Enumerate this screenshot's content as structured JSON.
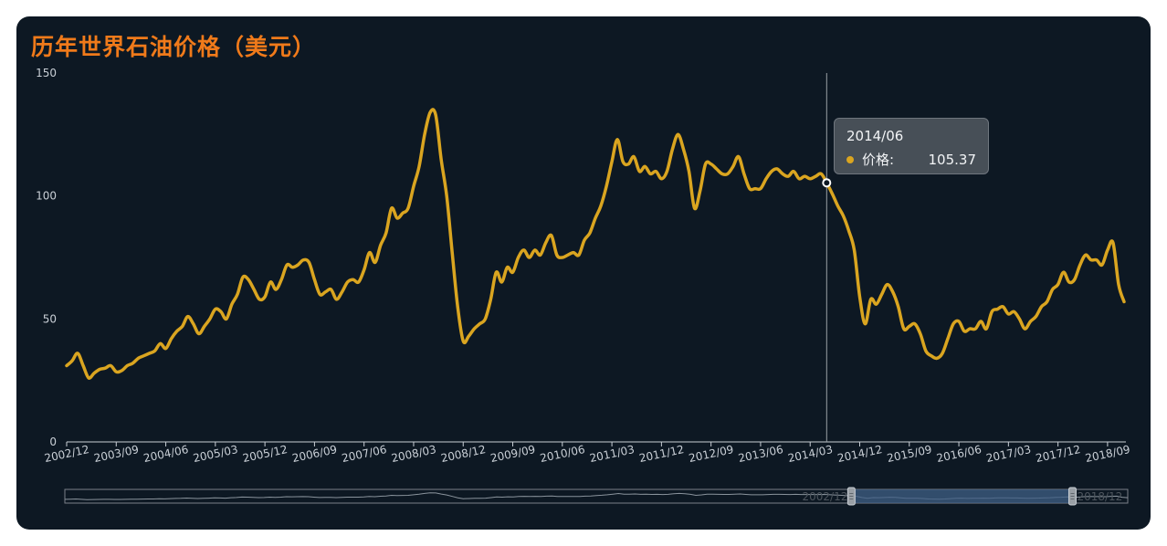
{
  "title": "历年世界石油价格（美元）",
  "colors": {
    "background": "#0d1823",
    "title": "#f07a1a",
    "line": "#daa520",
    "axis": "#c9cfd6",
    "cursor": "#9aa0a6",
    "zoom_border": "#7a8088",
    "zoom_fill": "#3f5f86"
  },
  "tooltip": {
    "date": "2014/06",
    "series_label": "价格:",
    "value": "105.37"
  },
  "zoom": {
    "start_label": "2002/12",
    "end_label": "2018/12",
    "start_fraction": 0.74,
    "end_fraction": 0.948
  },
  "chart_data": {
    "type": "line",
    "title": "历年世界石油价格（美元）",
    "xlabel": "",
    "ylabel": "",
    "ylim": [
      0,
      150
    ],
    "yticks": [
      0,
      50,
      100,
      150
    ],
    "x_tick_labels": [
      "2002/12",
      "2003/09",
      "2004/06",
      "2005/03",
      "2005/12",
      "2006/09",
      "2007/06",
      "2008/03",
      "2008/12",
      "2009/09",
      "2010/06",
      "2011/03",
      "2011/12",
      "2012/09",
      "2013/06",
      "2014/03",
      "2014/12",
      "2015/09",
      "2016/06",
      "2017/03",
      "2017/12",
      "2018/09"
    ],
    "grid": false,
    "legend": "none",
    "highlight": {
      "x": "2014/06",
      "y": 105.37
    },
    "series": [
      {
        "points": [
          [
            "2002/12",
            31
          ],
          [
            "2003/01",
            33
          ],
          [
            "2003/02",
            36
          ],
          [
            "2003/03",
            31
          ],
          [
            "2003/04",
            26
          ],
          [
            "2003/05",
            28
          ],
          [
            "2003/06",
            29.5
          ],
          [
            "2003/07",
            30
          ],
          [
            "2003/08",
            31
          ],
          [
            "2003/09",
            28.5
          ],
          [
            "2003/10",
            29
          ],
          [
            "2003/11",
            31
          ],
          [
            "2003/12",
            32
          ],
          [
            "2004/01",
            34
          ],
          [
            "2004/02",
            35
          ],
          [
            "2004/03",
            36
          ],
          [
            "2004/04",
            37
          ],
          [
            "2004/05",
            40
          ],
          [
            "2004/06",
            38
          ],
          [
            "2004/07",
            42
          ],
          [
            "2004/08",
            45
          ],
          [
            "2004/09",
            47
          ],
          [
            "2004/10",
            51
          ],
          [
            "2004/11",
            48
          ],
          [
            "2004/12",
            44
          ],
          [
            "2005/01",
            47
          ],
          [
            "2005/02",
            50
          ],
          [
            "2005/03",
            54
          ],
          [
            "2005/04",
            53
          ],
          [
            "2005/05",
            50
          ],
          [
            "2005/06",
            56
          ],
          [
            "2005/07",
            60
          ],
          [
            "2005/08",
            67
          ],
          [
            "2005/09",
            66
          ],
          [
            "2005/10",
            62
          ],
          [
            "2005/11",
            58
          ],
          [
            "2005/12",
            59
          ],
          [
            "2006/01",
            65
          ],
          [
            "2006/02",
            62
          ],
          [
            "2006/03",
            66
          ],
          [
            "2006/04",
            72
          ],
          [
            "2006/05",
            71
          ],
          [
            "2006/06",
            72
          ],
          [
            "2006/07",
            74
          ],
          [
            "2006/08",
            73
          ],
          [
            "2006/09",
            66
          ],
          [
            "2006/10",
            60
          ],
          [
            "2006/11",
            61
          ],
          [
            "2006/12",
            62
          ],
          [
            "2007/01",
            58
          ],
          [
            "2007/02",
            61
          ],
          [
            "2007/03",
            65
          ],
          [
            "2007/04",
            66
          ],
          [
            "2007/05",
            65
          ],
          [
            "2007/06",
            70
          ],
          [
            "2007/07",
            77
          ],
          [
            "2007/08",
            73
          ],
          [
            "2007/09",
            80
          ],
          [
            "2007/10",
            85
          ],
          [
            "2007/11",
            95
          ],
          [
            "2007/12",
            91
          ],
          [
            "2008/01",
            93
          ],
          [
            "2008/02",
            95
          ],
          [
            "2008/03",
            104
          ],
          [
            "2008/04",
            112
          ],
          [
            "2008/05",
            125
          ],
          [
            "2008/06",
            134
          ],
          [
            "2008/07",
            133
          ],
          [
            "2008/08",
            115
          ],
          [
            "2008/09",
            100
          ],
          [
            "2008/10",
            77
          ],
          [
            "2008/11",
            55
          ],
          [
            "2008/12",
            41
          ],
          [
            "2009/01",
            43
          ],
          [
            "2009/02",
            46
          ],
          [
            "2009/03",
            48
          ],
          [
            "2009/04",
            50
          ],
          [
            "2009/05",
            58
          ],
          [
            "2009/06",
            69
          ],
          [
            "2009/07",
            65
          ],
          [
            "2009/08",
            71
          ],
          [
            "2009/09",
            69
          ],
          [
            "2009/10",
            75
          ],
          [
            "2009/11",
            78
          ],
          [
            "2009/12",
            75
          ],
          [
            "2010/01",
            78
          ],
          [
            "2010/02",
            76
          ],
          [
            "2010/03",
            81
          ],
          [
            "2010/04",
            84
          ],
          [
            "2010/05",
            76
          ],
          [
            "2010/06",
            75
          ],
          [
            "2010/07",
            76
          ],
          [
            "2010/08",
            77
          ],
          [
            "2010/09",
            76
          ],
          [
            "2010/10",
            82
          ],
          [
            "2010/11",
            85
          ],
          [
            "2010/12",
            91
          ],
          [
            "2011/01",
            96
          ],
          [
            "2011/02",
            104
          ],
          [
            "2011/03",
            114
          ],
          [
            "2011/04",
            123
          ],
          [
            "2011/05",
            114
          ],
          [
            "2011/06",
            113
          ],
          [
            "2011/07",
            116
          ],
          [
            "2011/08",
            110
          ],
          [
            "2011/09",
            112
          ],
          [
            "2011/10",
            109
          ],
          [
            "2011/11",
            110
          ],
          [
            "2011/12",
            107
          ],
          [
            "2012/01",
            110
          ],
          [
            "2012/02",
            119
          ],
          [
            "2012/03",
            125
          ],
          [
            "2012/04",
            119
          ],
          [
            "2012/05",
            110
          ],
          [
            "2012/06",
            95
          ],
          [
            "2012/07",
            102
          ],
          [
            "2012/08",
            113
          ],
          [
            "2012/09",
            113
          ],
          [
            "2012/10",
            111
          ],
          [
            "2012/11",
            109
          ],
          [
            "2012/12",
            109
          ],
          [
            "2013/01",
            112
          ],
          [
            "2013/02",
            116
          ],
          [
            "2013/03",
            109
          ],
          [
            "2013/04",
            103
          ],
          [
            "2013/05",
            103
          ],
          [
            "2013/06",
            103
          ],
          [
            "2013/07",
            107
          ],
          [
            "2013/08",
            110
          ],
          [
            "2013/09",
            111
          ],
          [
            "2013/10",
            109
          ],
          [
            "2013/11",
            108
          ],
          [
            "2013/12",
            110
          ],
          [
            "2014/01",
            107
          ],
          [
            "2014/02",
            108
          ],
          [
            "2014/03",
            107
          ],
          [
            "2014/04",
            108
          ],
          [
            "2014/05",
            109
          ],
          [
            "2014/06",
            105.37
          ],
          [
            "2014/07",
            101
          ],
          [
            "2014/08",
            96
          ],
          [
            "2014/09",
            92
          ],
          [
            "2014/10",
            86
          ],
          [
            "2014/11",
            78
          ],
          [
            "2014/12",
            59
          ],
          [
            "2015/01",
            48
          ],
          [
            "2015/02",
            58
          ],
          [
            "2015/03",
            56
          ],
          [
            "2015/04",
            60
          ],
          [
            "2015/05",
            64
          ],
          [
            "2015/06",
            61
          ],
          [
            "2015/07",
            55
          ],
          [
            "2015/08",
            46
          ],
          [
            "2015/09",
            47
          ],
          [
            "2015/10",
            48
          ],
          [
            "2015/11",
            44
          ],
          [
            "2015/12",
            37
          ],
          [
            "2016/01",
            35
          ],
          [
            "2016/02",
            34
          ],
          [
            "2016/03",
            36
          ],
          [
            "2016/04",
            42
          ],
          [
            "2016/05",
            48
          ],
          [
            "2016/06",
            49
          ],
          [
            "2016/07",
            45
          ],
          [
            "2016/08",
            46
          ],
          [
            "2016/09",
            46
          ],
          [
            "2016/10",
            49
          ],
          [
            "2016/11",
            46
          ],
          [
            "2016/12",
            53
          ],
          [
            "2017/01",
            54
          ],
          [
            "2017/02",
            55
          ],
          [
            "2017/03",
            52
          ],
          [
            "2017/04",
            53
          ],
          [
            "2017/05",
            50
          ],
          [
            "2017/06",
            46
          ],
          [
            "2017/07",
            49
          ],
          [
            "2017/08",
            51
          ],
          [
            "2017/09",
            55
          ],
          [
            "2017/10",
            57
          ],
          [
            "2017/11",
            62
          ],
          [
            "2017/12",
            64
          ],
          [
            "2018/01",
            69
          ],
          [
            "2018/02",
            65
          ],
          [
            "2018/03",
            66
          ],
          [
            "2018/04",
            72
          ],
          [
            "2018/05",
            76
          ],
          [
            "2018/06",
            74
          ],
          [
            "2018/07",
            74
          ],
          [
            "2018/08",
            72
          ],
          [
            "2018/09",
            78
          ],
          [
            "2018/10",
            81
          ],
          [
            "2018/11",
            64
          ],
          [
            "2018/12",
            57
          ]
        ]
      }
    ]
  }
}
